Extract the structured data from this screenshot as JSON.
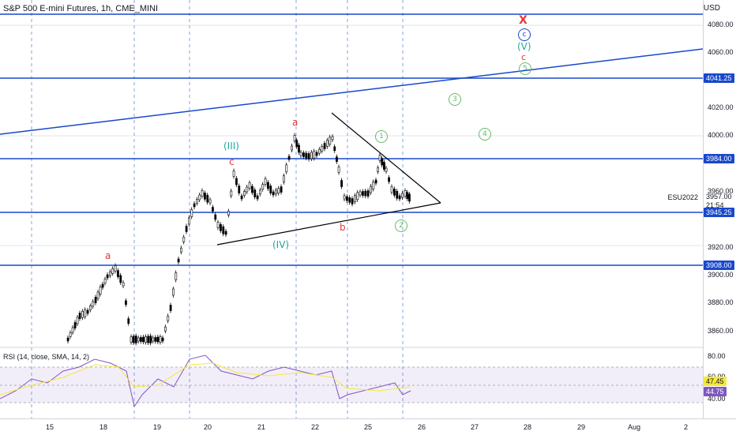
{
  "header": {
    "title": "S&P 500 E-mini Futures, 1h, CME_MINI",
    "currency": "USD"
  },
  "price_axis": {
    "ticks": [
      "4080.00",
      "4060.00",
      "4020.00",
      "4000.00",
      "3960.00",
      "3920.00",
      "3900.00",
      "3880.00",
      "3860.00",
      "80.00",
      "60.00",
      "40.00"
    ],
    "level_tags": [
      "4041.25",
      "3984.00",
      "3945.25",
      "3908.00"
    ],
    "last_price": "3957.00",
    "countdown": "21:54",
    "symbol": "ESU2022"
  },
  "time_axis": {
    "ticks": [
      "15",
      "18",
      "19",
      "20",
      "21",
      "22",
      "25",
      "26",
      "27",
      "28",
      "29",
      "Aug",
      "2"
    ]
  },
  "rsi": {
    "title": "RSI (14, close, SMA, 14, 2)",
    "value_a": "47.45",
    "value_b": "44.75"
  },
  "waves": {
    "a_top": "a",
    "c_left": "c",
    "wave3": "(III)",
    "wave4": "(IV)",
    "b": "b",
    "a_low": "a",
    "w1": "1",
    "w2": "2",
    "w3": "3",
    "w4": "4",
    "w5": "5",
    "v": "(V)",
    "c_circle": "c",
    "c_small": "c",
    "x_mark": "X"
  },
  "colors": {
    "level_line": "#1848cc",
    "wave_green": "#26a69a",
    "wave_red": "#e53935",
    "triangle": "#000000"
  }
}
